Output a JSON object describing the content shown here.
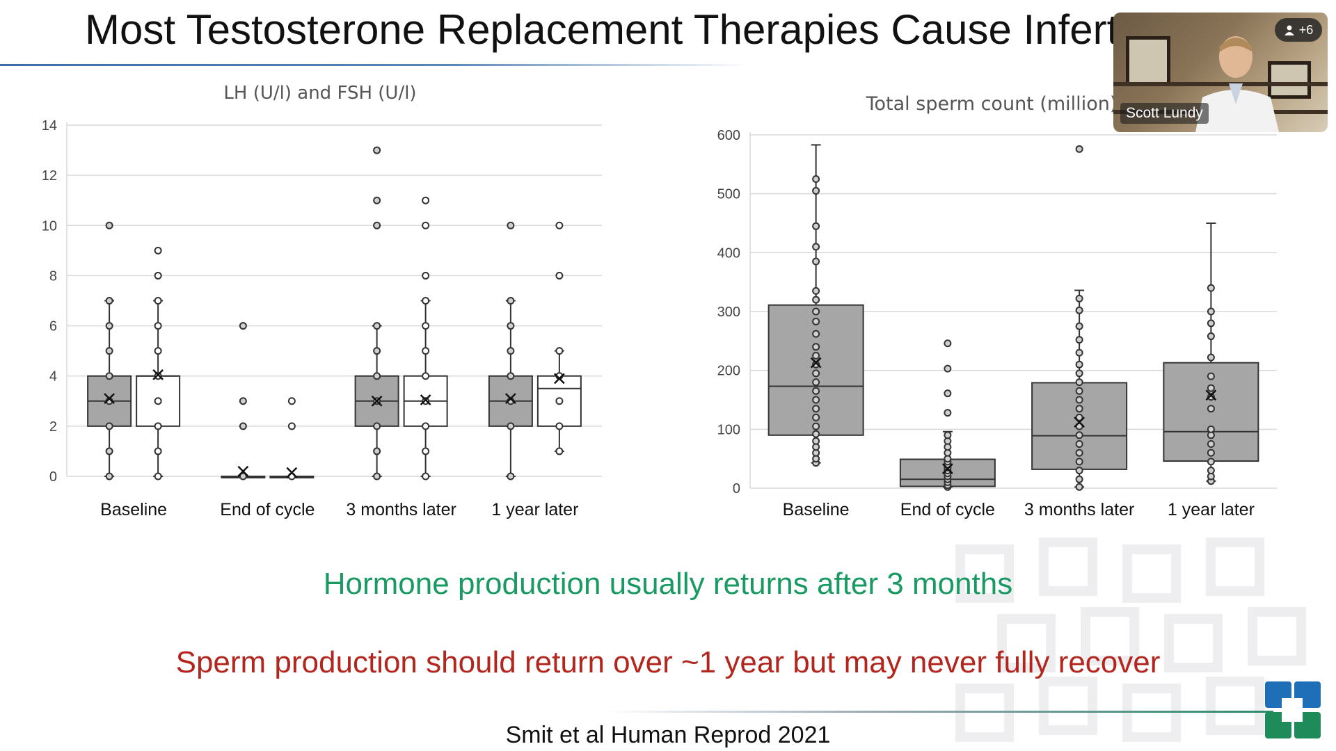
{
  "slide": {
    "title": "Most Testosterone Replacement Therapies Cause Infertility",
    "message_hormone": "Hormone production usually returns after 3 months",
    "message_sperm": "Sperm production should return over ~1 year but may never fully recover",
    "citation": "Smit et al Human Reprod 2021",
    "colors": {
      "hormone_message": "#1a9a63",
      "sperm_message": "#b3261e",
      "box_fill_lh": "#a6a6a6",
      "box_fill_fsh": "#ffffff"
    }
  },
  "video_tile": {
    "participant_name": "Scott Lundy",
    "participant_count": "+6",
    "icon": "person-icon"
  },
  "chart_data": [
    {
      "type": "boxplot",
      "title": "LH (U/l) and FSH (U/l)",
      "categories": [
        "Baseline",
        "End of cycle",
        "3 months later",
        "1 year later"
      ],
      "ylim": [
        0,
        14
      ],
      "yticks": [
        0,
        2,
        4,
        6,
        8,
        10,
        12,
        14
      ],
      "grid": true,
      "series": [
        {
          "fill": "#a6a6a6",
          "boxes": [
            {
              "min": 0,
              "q1": 2,
              "median": 3,
              "q3": 4,
              "max": 7,
              "mean": 3.1,
              "points": [
                0,
                1,
                2,
                3,
                4,
                5,
                6,
                7,
                10
              ]
            },
            {
              "min": 0,
              "q1": 0,
              "median": 0,
              "q3": 0,
              "max": 0,
              "mean": 0.2,
              "points": [
                0,
                2,
                3,
                6
              ]
            },
            {
              "min": 0,
              "q1": 2,
              "median": 3,
              "q3": 4,
              "max": 6,
              "mean": 3,
              "points": [
                0,
                1,
                2,
                3,
                4,
                5,
                6,
                10,
                11,
                13
              ]
            },
            {
              "min": 0,
              "q1": 2,
              "median": 3,
              "q3": 4,
              "max": 7,
              "mean": 3.1,
              "points": [
                0,
                2,
                3,
                4,
                5,
                6,
                7,
                10
              ]
            }
          ]
        },
        {
          "fill": "#ffffff",
          "boxes": [
            {
              "min": 0,
              "q1": 2,
              "median": 4,
              "q3": 4,
              "max": 7,
              "mean": 4.05,
              "points": [
                0,
                1,
                2,
                3,
                4,
                5,
                6,
                7,
                8,
                9
              ]
            },
            {
              "min": 0,
              "q1": 0,
              "median": 0,
              "q3": 0,
              "max": 0,
              "mean": 0.15,
              "points": [
                0,
                2,
                3
              ]
            },
            {
              "min": 0,
              "q1": 2,
              "median": 3,
              "q3": 4,
              "max": 7,
              "mean": 3.05,
              "points": [
                0,
                1,
                2,
                3,
                4,
                5,
                6,
                7,
                8,
                10,
                11
              ]
            },
            {
              "min": 1,
              "q1": 2,
              "median": 3.5,
              "q3": 4,
              "max": 5,
              "mean": 3.9,
              "points": [
                1,
                2,
                3,
                4,
                5,
                8,
                10
              ]
            }
          ]
        }
      ]
    },
    {
      "type": "boxplot",
      "title": "Total sperm count (million)",
      "categories": [
        "Baseline",
        "End of cycle",
        "3 months later",
        "1 year later"
      ],
      "ylim": [
        0,
        600
      ],
      "yticks": [
        0,
        100,
        200,
        300,
        400,
        500,
        600
      ],
      "grid": true,
      "series": [
        {
          "fill": "#a6a6a6",
          "boxes": [
            {
              "min": 43,
              "q1": 90,
              "median": 173,
              "q3": 311,
              "max": 583,
              "mean": 213,
              "points": [
                43,
                50,
                60,
                70,
                80,
                92,
                105,
                120,
                135,
                150,
                165,
                180,
                195,
                210,
                225,
                240,
                262,
                283,
                300,
                320,
                335,
                385,
                410,
                445,
                505,
                525
              ]
            },
            {
              "min": 2,
              "q1": 3,
              "median": 15,
              "q3": 49,
              "max": 96,
              "mean": 33,
              "points": [
                2,
                5,
                10,
                15,
                20,
                25,
                30,
                35,
                40,
                45,
                50,
                60,
                70,
                80,
                90,
                128,
                161,
                203,
                246
              ]
            },
            {
              "min": 2,
              "q1": 32,
              "median": 89,
              "q3": 179,
              "max": 336,
              "mean": 112,
              "points": [
                2,
                15,
                30,
                45,
                60,
                75,
                90,
                105,
                120,
                135,
                150,
                165,
                180,
                195,
                210,
                230,
                252,
                275,
                302,
                322,
                576
              ]
            },
            {
              "min": 12,
              "q1": 46,
              "median": 96,
              "q3": 213,
              "max": 450,
              "mean": 158,
              "points": [
                12,
                20,
                30,
                45,
                60,
                75,
                90,
                100,
                135,
                155,
                170,
                190,
                222,
                258,
                280,
                300,
                340
              ]
            }
          ]
        }
      ]
    }
  ]
}
